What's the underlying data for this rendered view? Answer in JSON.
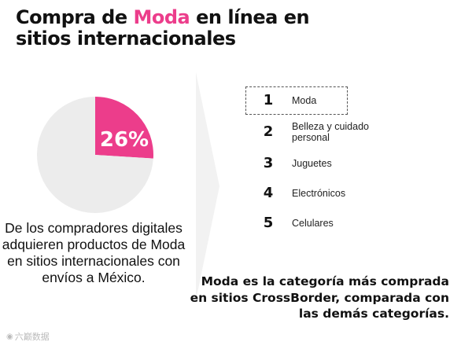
{
  "title": {
    "before": "Compra de ",
    "accent": "Moda",
    "after": " en línea en sitios internacionales"
  },
  "colors": {
    "accent": "#ec3d8b",
    "pie_rest": "#ececec",
    "arrow": "#f2f2f2",
    "text": "#111111"
  },
  "chart_data": {
    "type": "pie",
    "slices": [
      {
        "label": "26%",
        "value": 26,
        "color": "#ec3d8b"
      },
      {
        "label": "",
        "value": 74,
        "color": "#ececec"
      }
    ]
  },
  "description": "De los compradores digitales adquieren productos de Moda en sitios internacionales con envíos a México.",
  "ranking": [
    {
      "rank": "1",
      "label": "Moda",
      "selected": true
    },
    {
      "rank": "2",
      "label": "Belleza y cuidado personal",
      "selected": false
    },
    {
      "rank": "3",
      "label": "Juguetes",
      "selected": false
    },
    {
      "rank": "4",
      "label": "Electrónicos",
      "selected": false
    },
    {
      "rank": "5",
      "label": "Celulares",
      "selected": false
    }
  ],
  "summary": "Moda es la categoría más comprada en sitios CrossBorder, comparada con las demás categorías.",
  "watermark": {
    "icon": "eye-icon",
    "text": "六巅数据"
  }
}
